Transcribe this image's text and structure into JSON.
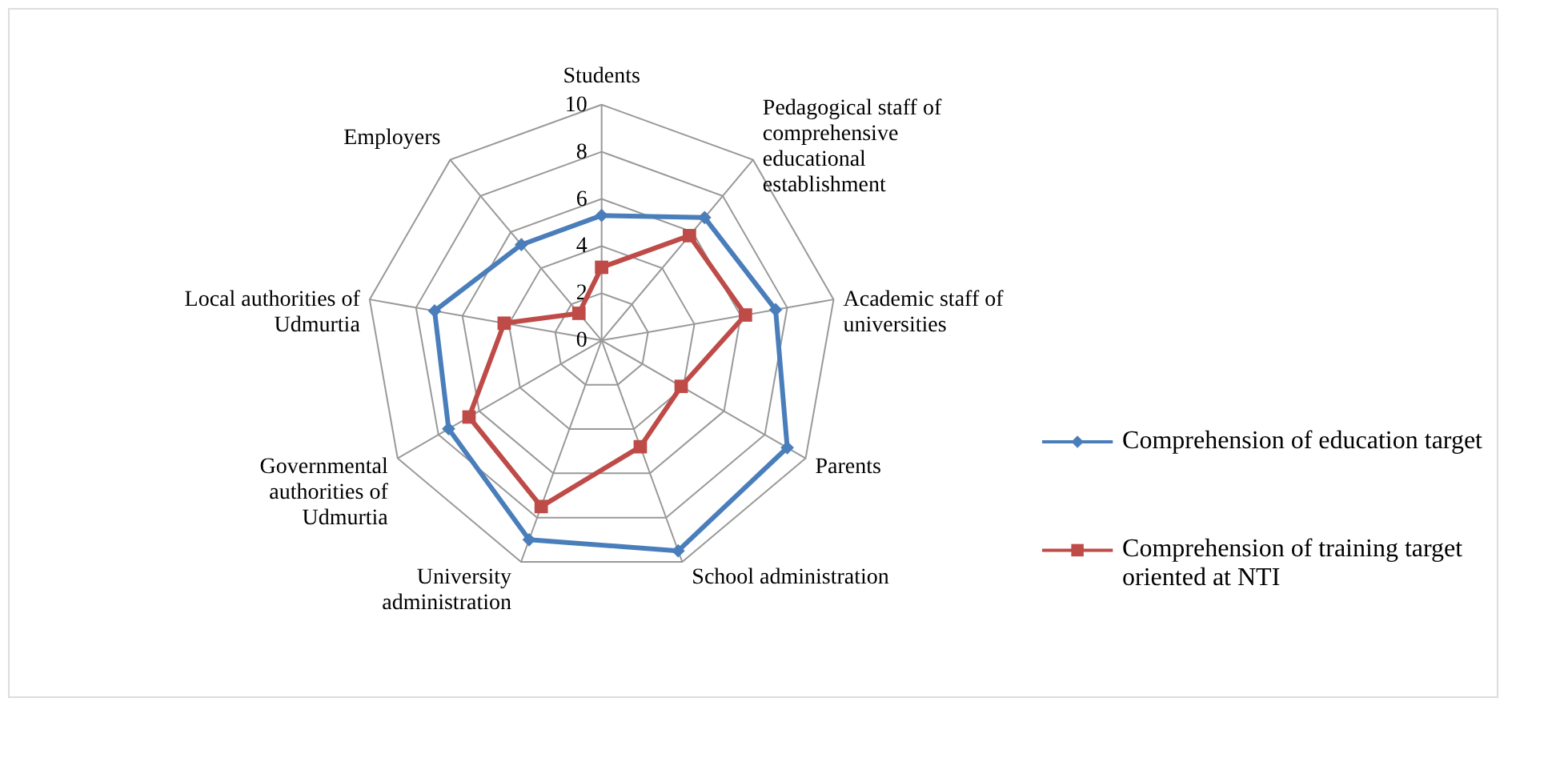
{
  "chart_data": {
    "type": "radar",
    "categories": [
      "Students",
      "Pedagogical staff of comprehensive educational establishment",
      "Academic staff of universities",
      "Parents",
      "School administration",
      "University administration",
      "Governmental authorities of Udmurtia",
      "Local authorities of Udmurtia",
      "Employers"
    ],
    "series": [
      {
        "name": "Comprehension of education target",
        "color": "#4a7ebb",
        "marker": "diamond",
        "values": [
          5.3,
          6.8,
          7.5,
          9.1,
          9.5,
          9.0,
          7.5,
          7.2,
          5.3
        ]
      },
      {
        "name": "Comprehension of training target oriented at NTI",
        "color": "#be4b48",
        "marker": "square",
        "values": [
          3.1,
          5.8,
          6.2,
          3.9,
          4.8,
          7.5,
          6.5,
          4.2,
          1.5
        ]
      }
    ],
    "ylim": [
      0,
      10
    ],
    "yticks": [
      0,
      2,
      4,
      6,
      8,
      10
    ],
    "grid": true,
    "legend": "right"
  }
}
